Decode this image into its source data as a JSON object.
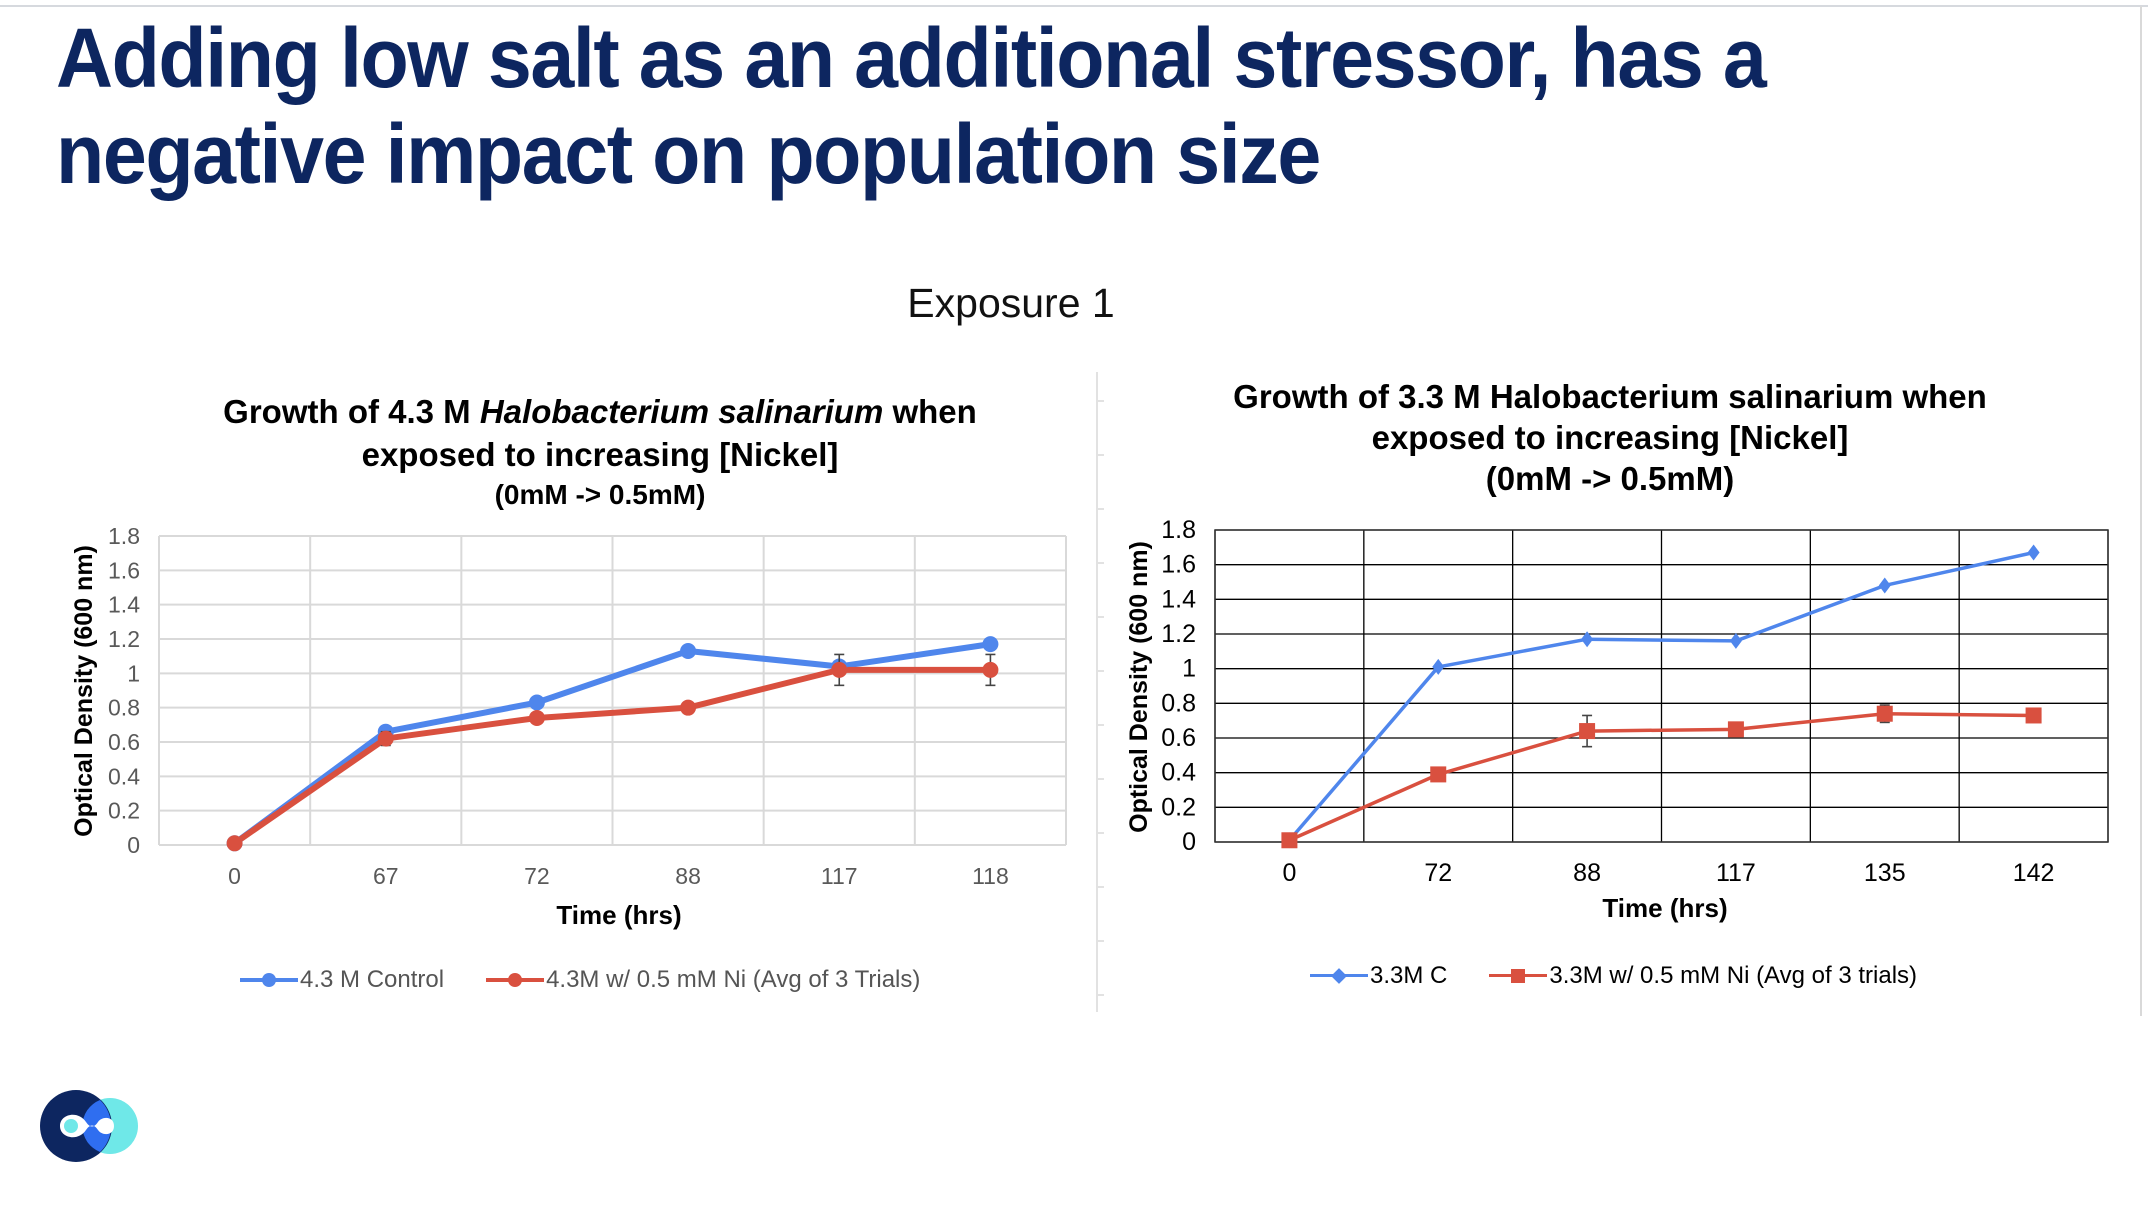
{
  "slide": {
    "title": "Adding low salt as an additional stressor, has a negative impact on population size",
    "title_lines": [
      "Adding low salt as an additional stressor, has a",
      "negative impact on population size"
    ],
    "subtitle": "Exposure 1",
    "logo": "brand-logo-icon",
    "colors": {
      "title": "#0d2660",
      "series_blue": "#4f86ec",
      "series_red": "#d9503f",
      "logo_navy": "#0d2660",
      "logo_cyan": "#6fe8e8",
      "logo_blue": "#2f6ef0"
    }
  },
  "chart_data": [
    {
      "type": "line",
      "title_parts": [
        {
          "text": "Growth of 4.3 M ",
          "italic": false
        },
        {
          "text": "Halobacterium salinarium",
          "italic": true
        },
        {
          "text": " when",
          "italic": false
        }
      ],
      "title_line2": "exposed to increasing [Nickel]",
      "title_line3": "(0mM -> 0.5mM)",
      "xlabel": "Time (hrs)",
      "ylabel": "Optical Density (600 nm)",
      "categories": [
        "0",
        "67",
        "72",
        "88",
        "117",
        "118"
      ],
      "ylim": [
        0,
        1.8
      ],
      "yticks": [
        "0",
        "0.2",
        "0.4",
        "0.6",
        "0.8",
        "1",
        "1.2",
        "1.4",
        "1.6",
        "1.8"
      ],
      "grid": true,
      "grid_style": "light-gray",
      "legend_position": "bottom",
      "series": [
        {
          "name": "4.3 M Control",
          "color": "#4f86ec",
          "marker": "circle",
          "values": [
            0.01,
            0.66,
            0.83,
            1.13,
            1.04,
            1.17
          ]
        },
        {
          "name": "4.3M w/ 0.5 mM Ni (Avg of 3 Trials)",
          "color": "#d9503f",
          "marker": "circle",
          "values": [
            0.01,
            0.62,
            0.74,
            0.8,
            1.02,
            1.02
          ],
          "errors": [
            0,
            0.04,
            0.03,
            0,
            0.09,
            0.09
          ]
        }
      ]
    },
    {
      "type": "line",
      "title_parts": [
        {
          "text": "Growth of 3.3 M Halobacterium salinarium when",
          "italic": false
        }
      ],
      "title_line2": "exposed to increasing [Nickel]",
      "title_line3": "(0mM -> 0.5mM)",
      "xlabel": "Time (hrs)",
      "ylabel": "Optical Density (600 nm)",
      "categories": [
        "0",
        "72",
        "88",
        "117",
        "135",
        "142"
      ],
      "ylim": [
        0,
        1.8
      ],
      "yticks": [
        "0",
        "0.2",
        "0.4",
        "0.6",
        "0.8",
        "1",
        "1.2",
        "1.4",
        "1.6",
        "1.8"
      ],
      "grid": true,
      "grid_style": "black",
      "legend_position": "bottom",
      "series": [
        {
          "name": "3.3M C",
          "color": "#4f86ec",
          "marker": "diamond",
          "values": [
            0.01,
            1.01,
            1.17,
            1.16,
            1.48,
            1.67
          ]
        },
        {
          "name": "3.3M w/ 0.5 mM Ni (Avg of 3 trials)",
          "color": "#d9503f",
          "marker": "square",
          "values": [
            0.01,
            0.39,
            0.64,
            0.65,
            0.74,
            0.73
          ],
          "errors": [
            0,
            0,
            0.09,
            0,
            0.05,
            0
          ]
        }
      ]
    }
  ]
}
